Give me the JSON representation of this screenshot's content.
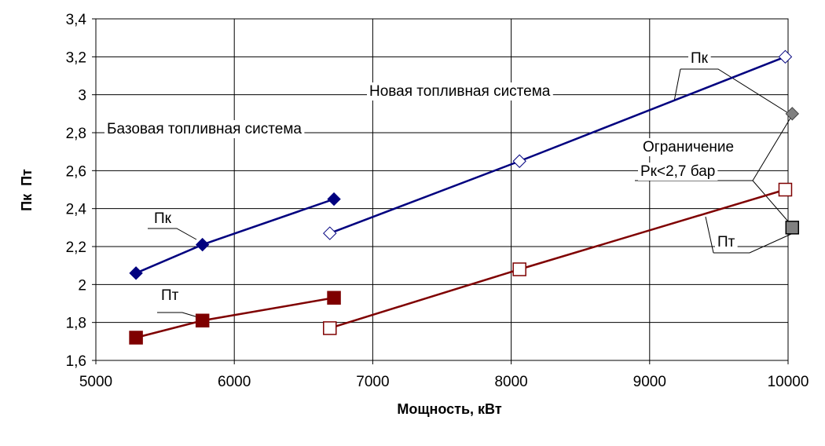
{
  "chart_data": {
    "type": "scatter",
    "xlabel": "Мощность, кВт",
    "ylabel": "Пк  Пт",
    "xlim": [
      5000,
      10000
    ],
    "ylim": [
      1.6,
      3.4
    ],
    "x_ticks": [
      5000,
      6000,
      7000,
      8000,
      9000,
      10000
    ],
    "x_tick_labels": [
      "5000",
      "6000",
      "7000",
      "8000",
      "9000",
      "10000"
    ],
    "y_ticks": [
      1.6,
      1.8,
      2.0,
      2.2,
      2.4,
      2.6,
      2.8,
      3.0,
      3.2,
      3.4
    ],
    "y_tick_labels": [
      "1,6",
      "1,8",
      "2",
      "2,2",
      "2,4",
      "2,6",
      "2,8",
      "3",
      "3,2",
      "3,4"
    ],
    "grid": true,
    "series": [
      {
        "color": "#00007f",
        "marker": "diamond-filled",
        "x": [
          5290,
          5770,
          6720
        ],
        "y": [
          2.06,
          2.21,
          2.45
        ]
      },
      {
        "color": "#7f0000",
        "marker": "square-filled",
        "x": [
          5290,
          5770,
          6720
        ],
        "y": [
          1.72,
          1.81,
          1.93
        ]
      },
      {
        "color": "#00007f",
        "marker": "diamond-open",
        "x": [
          6690,
          8060,
          9980
        ],
        "y": [
          2.27,
          2.65,
          3.2
        ]
      },
      {
        "color": "#7f0000",
        "marker": "square-open",
        "x": [
          6690,
          8060,
          9980
        ],
        "y": [
          1.77,
          2.08,
          2.5
        ]
      },
      {
        "color": "#808080",
        "marker": "diamond-gray",
        "x": [
          10030
        ],
        "y": [
          2.9
        ]
      },
      {
        "color": "#808080",
        "marker": "square-gray",
        "x": [
          10030
        ],
        "y": [
          2.3
        ]
      }
    ],
    "annotations": {
      "base_system": "Базовая топливная система",
      "new_system": "Новая топливная система",
      "pk_base": "Пк",
      "pt_base": "Пт",
      "pk_new": "Пк",
      "pt_new": "Пт",
      "limit_line1": "Ограничение",
      "limit_line2": "Рк<2,7 бар"
    }
  }
}
